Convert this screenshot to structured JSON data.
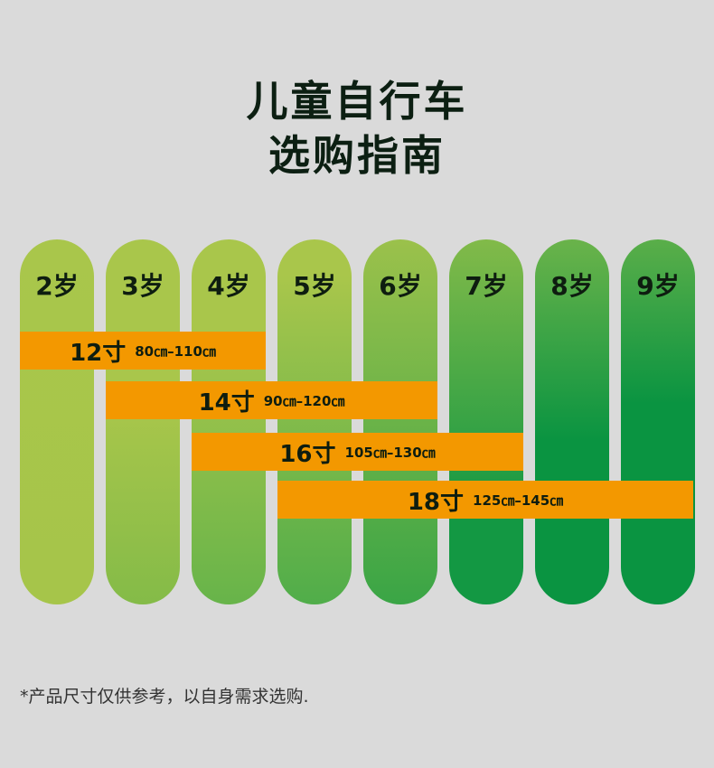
{
  "title": {
    "line1": "儿童自行车",
    "line2": "选购指南"
  },
  "ages": [
    "2岁",
    "3岁",
    "4岁",
    "5岁",
    "6岁",
    "7岁",
    "8岁",
    "9岁"
  ],
  "bars": [
    {
      "size": "12寸",
      "range": "80㎝–110㎝"
    },
    {
      "size": "14寸",
      "range": "90㎝–120㎝"
    },
    {
      "size": "16寸",
      "range": "105㎝–130㎝"
    },
    {
      "size": "18寸",
      "range": "125㎝–145㎝"
    }
  ],
  "note": "*产品尺寸仅供参考，以自身需求选购.",
  "colors": {
    "light_green": "#a8c64a",
    "dark_green": "#0a9441",
    "orange": "#f39800",
    "background": "#dadada"
  }
}
